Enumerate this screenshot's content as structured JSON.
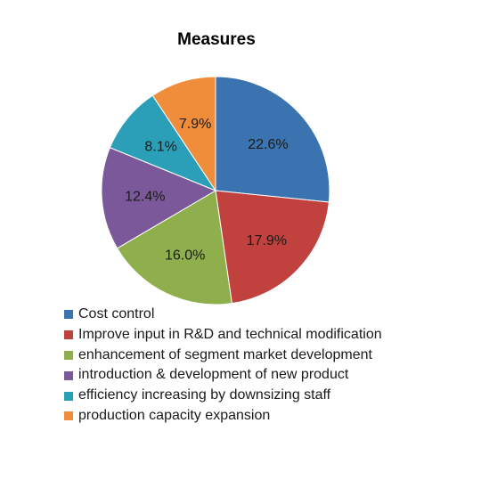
{
  "chart_data": {
    "type": "pie",
    "title": "Measures",
    "series": [
      {
        "name": "Cost control",
        "value": 22.6,
        "label": "22.6%",
        "color": "#3a73b0"
      },
      {
        "name": "Improve input in R&D and technical modification",
        "value": 17.9,
        "label": "17.9%",
        "color": "#c0413e"
      },
      {
        "name": "enhancement of segment market development",
        "value": 16.0,
        "label": "16.0%",
        "color": "#8eaf4b"
      },
      {
        "name": "introduction & development of new product",
        "value": 12.4,
        "label": "12.4%",
        "color": "#7a5899"
      },
      {
        "name": "efficiency increasing by downsizing staff",
        "value": 8.1,
        "label": "8.1%",
        "color": "#2c9fb8"
      },
      {
        "name": "production capacity expansion",
        "value": 7.9,
        "label": "7.9%",
        "color": "#f08d3b"
      }
    ],
    "legend_position": "bottom"
  }
}
